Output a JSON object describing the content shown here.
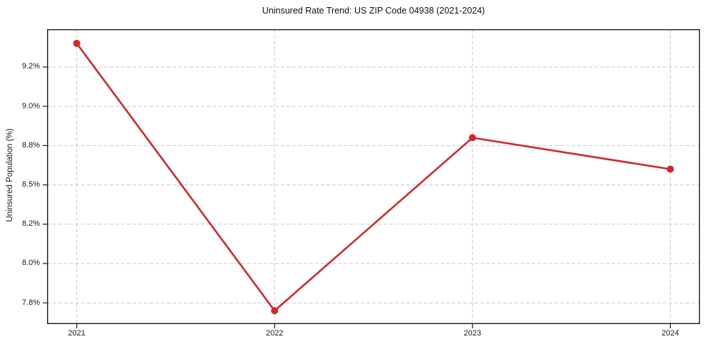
{
  "chart_data": {
    "type": "line",
    "title": "Uninsured Rate Trend: US ZIP Code 04938 (2021-2024)",
    "xlabel": "",
    "ylabel": "Uninsured Population (%)",
    "x": [
      2021,
      2022,
      2023,
      2024
    ],
    "values": [
      9.4,
      7.7,
      8.8,
      8.6
    ],
    "xlim": [
      2020.85,
      2024.15
    ],
    "ylim": [
      7.615,
      9.49
    ],
    "xticks": {
      "values": [
        2021,
        2022,
        2023,
        2024
      ],
      "labels": [
        "2021",
        "2022",
        "2023",
        "2024"
      ]
    },
    "yticks": {
      "values": [
        7.75,
        8.0,
        8.25,
        8.5,
        8.75,
        9.0,
        9.25
      ],
      "labels": [
        "7.8%",
        "8.0%",
        "8.2%",
        "8.5%",
        "8.8%",
        "9.0%",
        "9.2%"
      ]
    },
    "grid": true,
    "legend": null,
    "marker": "circle",
    "colors": {
      "line": "#d62728",
      "marker": "#d62728",
      "grid": "#c9c9c9",
      "frame": "#1a1a1a",
      "tick": "#1a1a1a",
      "text": "#1a1a1a",
      "background": "#ffffff"
    }
  }
}
